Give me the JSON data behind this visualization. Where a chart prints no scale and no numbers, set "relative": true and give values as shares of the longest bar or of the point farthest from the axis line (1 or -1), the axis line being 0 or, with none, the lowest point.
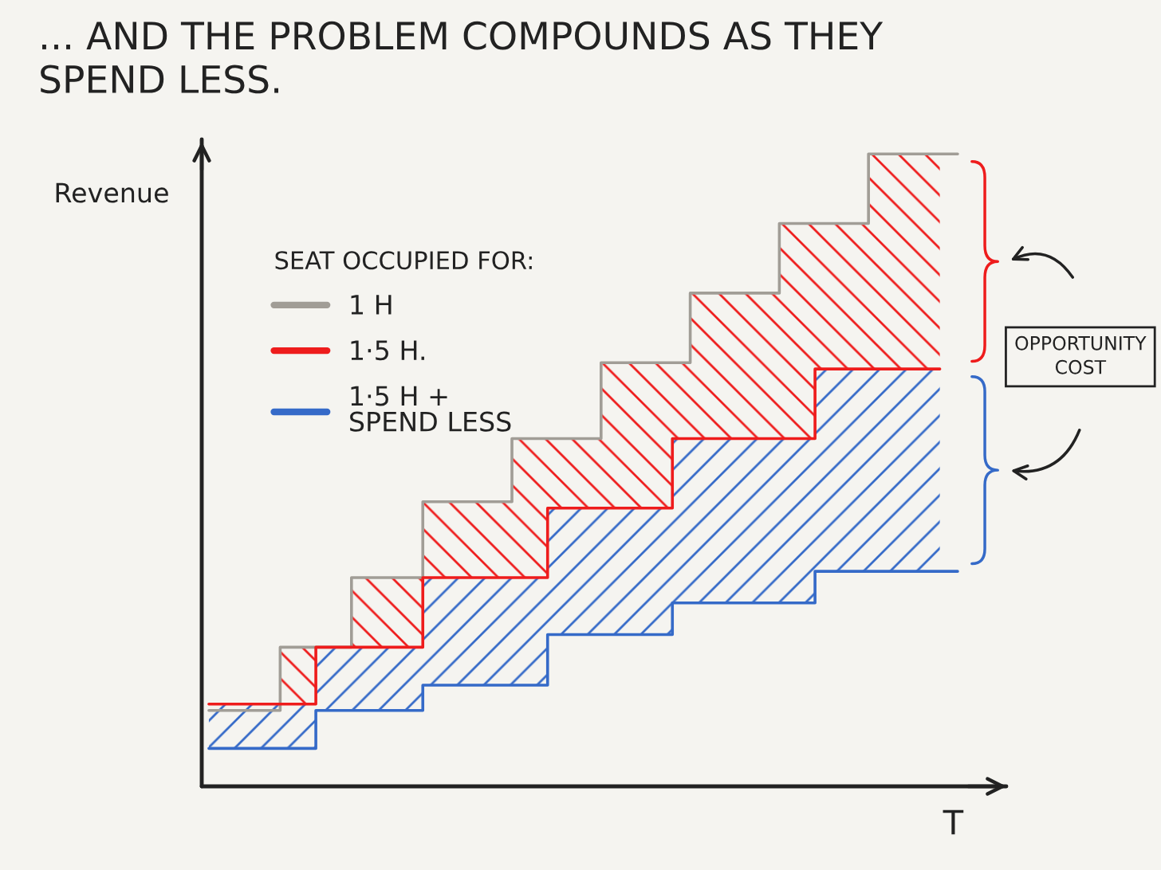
{
  "chart_data": {
    "type": "step",
    "title": "... AND THE PROBLEM COMPOUNDS AS THEY\nSPEND LESS.",
    "xlabel": "T",
    "ylabel": "Revenue",
    "legend_title": "SEAT OCCUPIED FOR:",
    "legend": "top left",
    "relative": true,
    "categories": [
      null,
      null,
      null,
      null,
      null,
      null,
      null,
      null,
      null,
      null,
      null,
      null,
      null,
      null,
      null,
      null,
      null,
      null,
      null,
      null,
      null,
      null,
      null,
      null,
      null,
      null,
      null,
      null,
      null,
      null,
      null,
      null,
      null,
      null,
      null,
      null,
      null,
      null,
      null,
      null,
      null,
      null,
      null
    ],
    "series": [
      {
        "name": "1 H",
        "color": "#a19d96",
        "values": [
          0.12,
          0.12,
          0.12,
          0.12,
          0.22,
          0.22,
          0.22,
          0.22,
          0.33,
          0.33,
          0.33,
          0.33,
          0.45,
          0.45,
          0.45,
          0.45,
          0.45,
          0.55,
          0.55,
          0.55,
          0.55,
          0.55,
          0.67,
          0.67,
          0.67,
          0.67,
          0.67,
          0.78,
          0.78,
          0.78,
          0.78,
          0.78,
          0.89,
          0.89,
          0.89,
          0.89,
          0.89,
          1,
          1,
          1,
          1,
          1,
          1
        ]
      },
      {
        "name": "1·5 H.",
        "color": "#ee1c1c",
        "values": [
          0.13,
          0.13,
          0.13,
          0.13,
          0.13,
          0.13,
          0.22,
          0.22,
          0.22,
          0.22,
          0.22,
          0.22,
          0.33,
          0.33,
          0.33,
          0.33,
          0.33,
          0.33,
          0.33,
          0.44,
          0.44,
          0.44,
          0.44,
          0.44,
          0.44,
          0.44,
          0.55,
          0.55,
          0.55,
          0.55,
          0.55,
          0.55,
          0.55,
          0.55,
          0.66,
          0.66,
          0.66,
          0.66,
          0.66,
          0.66,
          0.66,
          0.66,
          null
        ],
        "lower": [
          null,
          null,
          null,
          null,
          0.13,
          0.13,
          0.22,
          0.22,
          0.22,
          0.22,
          0.22,
          0.22,
          0.33,
          0.33,
          0.33,
          0.33,
          0.33,
          0.33,
          0.33,
          0.44,
          0.44,
          0.44,
          0.44,
          0.44,
          0.44,
          0.44,
          0.55,
          0.55,
          0.55,
          0.55,
          0.55,
          0.55,
          0.55,
          0.55,
          0.66,
          0.66,
          0.66,
          0.66,
          0.66,
          0.66,
          0.66,
          0.66,
          null
        ],
        "upper": [
          null,
          null,
          null,
          null,
          0.22,
          0.22,
          0.22,
          0.22,
          0.33,
          0.33,
          0.33,
          0.33,
          0.45,
          0.45,
          0.45,
          0.45,
          0.45,
          0.55,
          0.55,
          0.55,
          0.55,
          0.55,
          0.67,
          0.67,
          0.67,
          0.67,
          0.67,
          0.78,
          0.78,
          0.78,
          0.78,
          0.78,
          0.89,
          0.89,
          0.89,
          0.89,
          0.89,
          1,
          1,
          1,
          1,
          1,
          null
        ]
      },
      {
        "name": "1·5 H +\nSPEND LESS",
        "color": "#356ac8",
        "values": [
          0.06,
          0.06,
          0.06,
          0.06,
          0.06,
          0.06,
          0.12,
          0.12,
          0.12,
          0.12,
          0.12,
          0.12,
          0.16,
          0.16,
          0.16,
          0.16,
          0.16,
          0.16,
          0.16,
          0.24,
          0.24,
          0.24,
          0.24,
          0.24,
          0.24,
          0.24,
          0.29,
          0.29,
          0.29,
          0.29,
          0.29,
          0.29,
          0.29,
          0.29,
          0.34,
          0.34,
          0.34,
          0.34,
          0.34,
          0.34,
          0.34,
          0.34,
          0.34
        ],
        "lower": [
          0.06,
          0.06,
          0.06,
          0.06,
          0.06,
          0.06,
          0.12,
          0.12,
          0.12,
          0.12,
          0.12,
          0.12,
          0.16,
          0.16,
          0.16,
          0.16,
          0.16,
          0.16,
          0.16,
          0.24,
          0.24,
          0.24,
          0.24,
          0.24,
          0.24,
          0.24,
          0.29,
          0.29,
          0.29,
          0.29,
          0.29,
          0.29,
          0.29,
          0.29,
          0.34,
          0.34,
          0.34,
          0.34,
          0.34,
          0.34,
          0.34,
          0.34,
          null
        ],
        "upper": [
          0.13,
          0.13,
          0.13,
          0.13,
          0.13,
          0.13,
          0.22,
          0.22,
          0.22,
          0.22,
          0.22,
          0.22,
          0.33,
          0.33,
          0.33,
          0.33,
          0.33,
          0.33,
          0.33,
          0.44,
          0.44,
          0.44,
          0.44,
          0.44,
          0.44,
          0.44,
          0.55,
          0.55,
          0.55,
          0.55,
          0.55,
          0.55,
          0.55,
          0.55,
          0.66,
          0.66,
          0.66,
          0.66,
          0.66,
          0.66,
          0.66,
          0.66,
          null
        ]
      }
    ],
    "annotations": [
      "OPPORTUNITY COST"
    ]
  }
}
